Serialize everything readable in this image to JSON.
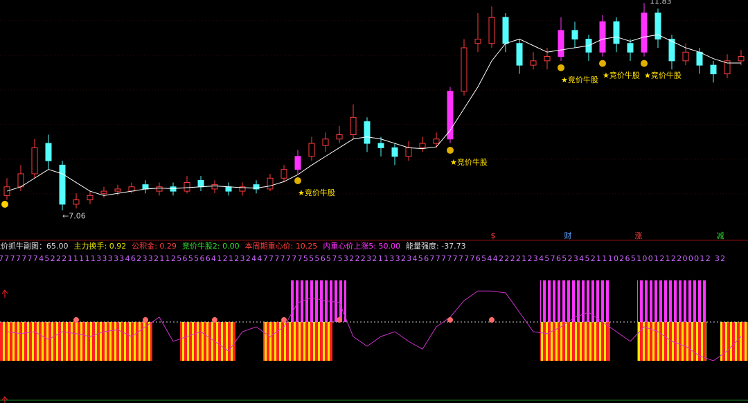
{
  "chart_data": [
    {
      "type": "candlestick",
      "opens": [
        7.4,
        7.6,
        7.9,
        8.6,
        8.1,
        7.2,
        7.3,
        7.45,
        7.5,
        7.5,
        7.65,
        7.5,
        7.6,
        7.5,
        7.75,
        7.55,
        7.6,
        7.5,
        7.65,
        7.55,
        7.8,
        8.0,
        8.3,
        8.55,
        8.7,
        8.8,
        9.1,
        8.6,
        8.5,
        8.3,
        8.5,
        8.6,
        8.7,
        9.8,
        10.9,
        10.9,
        11.5,
        10.9,
        10.4,
        10.5,
        10.6,
        11.2,
        11.0,
        10.7,
        11.4,
        10.9,
        10.7,
        11.6,
        11.0,
        10.5,
        10.7,
        10.4,
        10.2,
        10.5
      ],
      "closes": [
        7.6,
        7.9,
        8.5,
        8.2,
        7.2,
        7.3,
        7.4,
        7.5,
        7.55,
        7.6,
        7.55,
        7.6,
        7.5,
        7.7,
        7.6,
        7.65,
        7.5,
        7.6,
        7.55,
        7.8,
        8.0,
        8.3,
        8.6,
        8.7,
        8.8,
        9.2,
        8.6,
        8.5,
        8.3,
        8.5,
        8.6,
        8.7,
        9.8,
        10.8,
        11.0,
        11.5,
        10.9,
        10.4,
        10.5,
        10.6,
        11.2,
        11.0,
        10.7,
        11.4,
        10.9,
        10.7,
        11.6,
        11.0,
        10.5,
        10.7,
        10.4,
        10.2,
        10.5,
        10.6
      ],
      "highs": [
        7.8,
        8.1,
        8.7,
        8.8,
        8.2,
        7.45,
        7.5,
        7.6,
        7.65,
        7.7,
        7.75,
        7.7,
        7.7,
        7.85,
        7.85,
        7.75,
        7.7,
        7.7,
        7.75,
        7.9,
        8.1,
        8.45,
        8.75,
        8.85,
        9.0,
        9.5,
        9.2,
        8.75,
        8.6,
        8.65,
        8.75,
        8.85,
        9.9,
        11.0,
        11.6,
        11.75,
        11.6,
        11.0,
        10.7,
        10.8,
        11.5,
        11.4,
        11.1,
        11.55,
        11.5,
        11.0,
        11.83,
        11.7,
        11.1,
        10.9,
        10.8,
        10.5,
        10.65,
        10.75
      ],
      "lows": [
        7.3,
        7.5,
        7.8,
        8.0,
        7.06,
        7.1,
        7.2,
        7.35,
        7.4,
        7.45,
        7.45,
        7.4,
        7.4,
        7.45,
        7.5,
        7.45,
        7.4,
        7.4,
        7.45,
        7.5,
        7.7,
        7.9,
        8.2,
        8.4,
        8.6,
        8.7,
        8.4,
        8.3,
        8.1,
        8.2,
        8.4,
        8.5,
        8.6,
        9.7,
        10.7,
        10.8,
        10.7,
        10.2,
        10.3,
        10.3,
        10.5,
        10.8,
        10.5,
        10.6,
        10.7,
        10.5,
        10.6,
        10.8,
        10.3,
        10.4,
        10.2,
        10.0,
        10.1,
        10.4
      ],
      "ma": [
        7.5,
        7.6,
        7.8,
        8.0,
        7.9,
        7.7,
        7.5,
        7.4,
        7.45,
        7.5,
        7.55,
        7.57,
        7.56,
        7.58,
        7.6,
        7.62,
        7.6,
        7.58,
        7.57,
        7.62,
        7.72,
        7.88,
        8.1,
        8.3,
        8.5,
        8.7,
        8.75,
        8.7,
        8.6,
        8.5,
        8.48,
        8.52,
        8.9,
        9.4,
        9.9,
        10.5,
        10.9,
        11.0,
        10.85,
        10.7,
        10.75,
        10.8,
        10.85,
        11.0,
        11.05,
        10.95,
        11.05,
        11.1,
        10.95,
        10.8,
        10.7,
        10.55,
        10.45,
        10.45
      ],
      "ylim": [
        6.8,
        11.9
      ],
      "up_color": "#ff3c3c",
      "down_color": "#54fcfc",
      "signal_color": "#ff33ff",
      "ma_color": "#ffffff",
      "annotations": [
        "★竞价牛股",
        "★竞价牛股",
        "★竞价牛股",
        "★竞价牛股",
        "★竞价牛股"
      ],
      "low_label": "←7.06",
      "high_label": "11.83",
      "markers": [
        "$",
        "财",
        "涨",
        "减"
      ]
    },
    {
      "type": "indicator",
      "header": [
        {
          "label": "竞价抓牛副图：",
          "value": "65.00",
          "color": "#dddddd"
        },
        {
          "label": "主力换手: ",
          "value": "0.92",
          "color": "#e8e800"
        },
        {
          "label": "公积金: ",
          "value": "0.29",
          "color": "#ff3c3c"
        },
        {
          "label": "竞价牛股2: ",
          "value": "0.00",
          "color": "#33dd33"
        },
        {
          "label": "本周期重心价: ",
          "value": "10.25",
          "color": "#ff3c3c"
        },
        {
          "label": "内重心价上涨5: ",
          "value": "50.00",
          "color": "#ff33ff"
        },
        {
          "label": "能量强度: ",
          "value": "-37.73",
          "color": "#dddddd"
        }
      ],
      "digits": "7777777452221111133333462332112565566412123244777777755565753222321133234567777777765442222123457652345211102651001212200012 32",
      "ylim": [
        0,
        100
      ],
      "level": 50,
      "line_values": [
        40,
        38,
        40,
        32,
        40,
        38,
        35,
        40,
        42,
        35,
        45,
        55,
        30,
        35,
        40,
        30,
        20,
        40,
        45,
        35,
        45,
        70,
        75,
        72,
        70,
        35,
        25,
        35,
        40,
        30,
        22,
        45,
        55,
        72,
        82,
        82,
        80,
        60,
        40,
        38,
        45,
        55,
        60,
        50,
        40,
        30,
        45,
        40,
        30,
        25,
        15,
        10,
        20,
        35
      ],
      "line_color": "#cc33cc",
      "upper_bars": [
        null,
        null,
        null,
        null,
        null,
        null,
        null,
        null,
        null,
        null,
        null,
        null,
        null,
        null,
        null,
        null,
        null,
        null,
        null,
        null,
        null,
        93,
        93,
        93,
        93,
        null,
        null,
        null,
        null,
        null,
        null,
        null,
        null,
        null,
        null,
        null,
        null,
        null,
        null,
        93,
        93,
        93,
        93,
        93,
        null,
        null,
        93,
        93,
        93,
        93,
        93,
        null,
        null,
        null
      ],
      "upper_color": "#ff33ff",
      "lower_bars": [
        10,
        10,
        10,
        10,
        10,
        10,
        10,
        10,
        10,
        10,
        10,
        null,
        null,
        10,
        10,
        10,
        10,
        null,
        null,
        10,
        10,
        10,
        10,
        10,
        null,
        null,
        null,
        null,
        null,
        null,
        null,
        null,
        null,
        null,
        null,
        null,
        null,
        null,
        null,
        10,
        10,
        10,
        10,
        10,
        null,
        null,
        10,
        10,
        10,
        10,
        10,
        null,
        10,
        10
      ],
      "lower_colors": [
        "#ffe600",
        "#ff2020"
      ]
    }
  ]
}
